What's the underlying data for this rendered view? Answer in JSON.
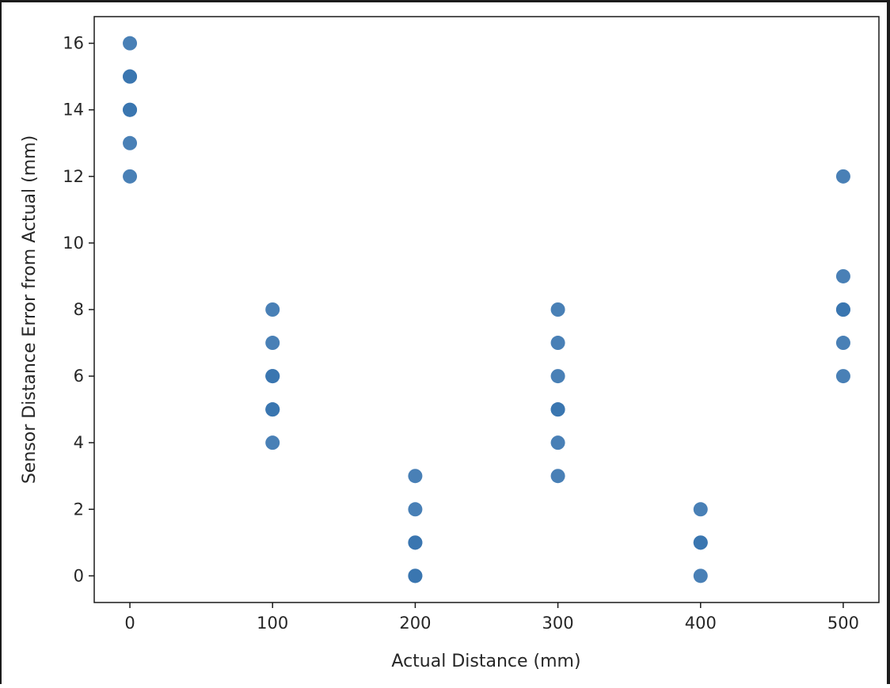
{
  "chart_data": {
    "type": "scatter",
    "title": "",
    "xlabel": "Actual Distance (mm)",
    "ylabel": "Sensor Distance Error from Actual (mm)",
    "xlim": [
      -25,
      525
    ],
    "ylim": [
      -0.8,
      16.8
    ],
    "x_ticks": [
      0,
      100,
      200,
      300,
      400,
      500
    ],
    "y_ticks": [
      0,
      2,
      4,
      6,
      8,
      10,
      12,
      14,
      16
    ],
    "grid": false,
    "legend": "none",
    "marker_color": "#3a75b0",
    "series": [
      {
        "points": [
          [
            0,
            16
          ],
          [
            0,
            15
          ],
          [
            0,
            15
          ],
          [
            0,
            14
          ],
          [
            0,
            14
          ],
          [
            0,
            13
          ],
          [
            0,
            12
          ],
          [
            100,
            8
          ],
          [
            100,
            7
          ],
          [
            100,
            6
          ],
          [
            100,
            6
          ],
          [
            100,
            5
          ],
          [
            100,
            5
          ],
          [
            100,
            4
          ],
          [
            200,
            3
          ],
          [
            200,
            2
          ],
          [
            200,
            1
          ],
          [
            200,
            1
          ],
          [
            200,
            0
          ],
          [
            200,
            0
          ],
          [
            300,
            8
          ],
          [
            300,
            7
          ],
          [
            300,
            6
          ],
          [
            300,
            5
          ],
          [
            300,
            5
          ],
          [
            300,
            4
          ],
          [
            300,
            3
          ],
          [
            400,
            2
          ],
          [
            400,
            1
          ],
          [
            400,
            1
          ],
          [
            400,
            0
          ],
          [
            500,
            12
          ],
          [
            500,
            9
          ],
          [
            500,
            8
          ],
          [
            500,
            8
          ],
          [
            500,
            7
          ],
          [
            500,
            6
          ]
        ]
      }
    ]
  }
}
